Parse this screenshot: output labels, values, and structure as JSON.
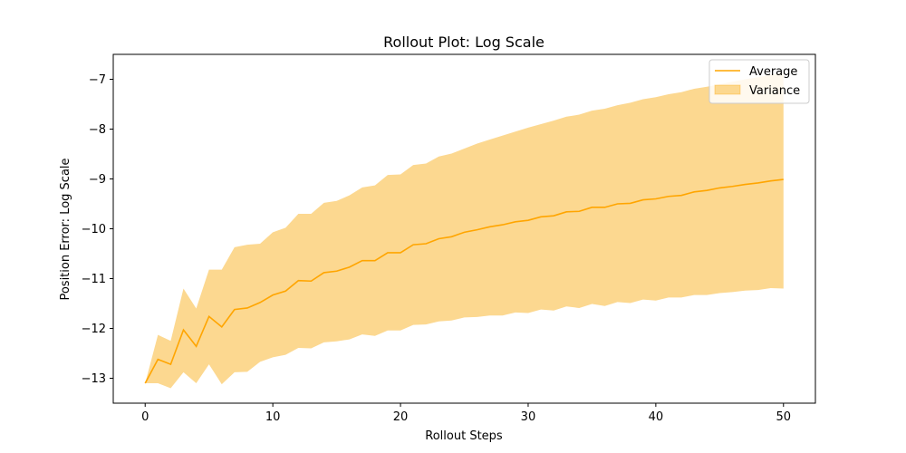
{
  "chart_data": {
    "type": "line",
    "title": "Rollout Plot: Log Scale",
    "xlabel": "Rollout Steps",
    "ylabel": "Position Error: Log Scale",
    "xlim": [
      -2.5,
      52.5
    ],
    "ylim": [
      -13.5,
      -6.5
    ],
    "xticks": [
      0,
      10,
      20,
      30,
      40,
      50
    ],
    "yticks": [
      -13,
      -12,
      -11,
      -10,
      -9,
      -8,
      -7
    ],
    "xtick_labels": [
      "0",
      "10",
      "20",
      "30",
      "40",
      "50"
    ],
    "ytick_labels": [
      "−13",
      "−12",
      "−11",
      "−10",
      "−9",
      "−8",
      "−7"
    ],
    "grid": false,
    "legend_placement": "top-right",
    "colors": {
      "line": "#ffa500",
      "band": "#fcd890",
      "axes": "#000000"
    },
    "x": [
      0,
      1,
      2,
      3,
      4,
      5,
      6,
      7,
      8,
      9,
      10,
      11,
      12,
      13,
      14,
      15,
      16,
      17,
      18,
      19,
      20,
      21,
      22,
      23,
      24,
      25,
      26,
      27,
      28,
      29,
      30,
      31,
      32,
      33,
      34,
      35,
      36,
      37,
      38,
      39,
      40,
      41,
      42,
      43,
      44,
      45,
      46,
      47,
      48,
      49,
      50
    ],
    "series": [
      {
        "name": "Average",
        "kind": "line",
        "values": [
          -13.1,
          -12.62,
          -12.72,
          -12.03,
          -12.36,
          -11.76,
          -11.97,
          -11.62,
          -11.59,
          -11.48,
          -11.33,
          -11.25,
          -11.04,
          -11.05,
          -10.88,
          -10.85,
          -10.77,
          -10.64,
          -10.64,
          -10.48,
          -10.48,
          -10.32,
          -10.3,
          -10.2,
          -10.16,
          -10.07,
          -10.02,
          -9.96,
          -9.92,
          -9.86,
          -9.83,
          -9.76,
          -9.74,
          -9.66,
          -9.65,
          -9.57,
          -9.57,
          -9.5,
          -9.49,
          -9.42,
          -9.4,
          -9.35,
          -9.33,
          -9.26,
          -9.23,
          -9.18,
          -9.15,
          -9.11,
          -9.08,
          -9.04,
          -9.01
        ]
      },
      {
        "name": "Variance",
        "kind": "band",
        "upper": [
          -13.1,
          -12.13,
          -12.25,
          -11.2,
          -11.6,
          -10.82,
          -10.82,
          -10.37,
          -10.32,
          -10.3,
          -10.07,
          -9.98,
          -9.7,
          -9.7,
          -9.48,
          -9.44,
          -9.33,
          -9.17,
          -9.13,
          -8.92,
          -8.91,
          -8.72,
          -8.69,
          -8.55,
          -8.49,
          -8.39,
          -8.29,
          -8.21,
          -8.13,
          -8.05,
          -7.97,
          -7.9,
          -7.83,
          -7.75,
          -7.71,
          -7.63,
          -7.59,
          -7.52,
          -7.47,
          -7.4,
          -7.36,
          -7.3,
          -7.26,
          -7.19,
          -7.15,
          -7.1,
          -7.05,
          -7.0,
          -6.96,
          -6.91,
          -6.86
        ],
        "lower": [
          -13.1,
          -13.1,
          -13.2,
          -12.88,
          -13.1,
          -12.72,
          -13.12,
          -12.88,
          -12.87,
          -12.67,
          -12.58,
          -12.53,
          -12.39,
          -12.4,
          -12.28,
          -12.26,
          -12.22,
          -12.12,
          -12.15,
          -12.04,
          -12.04,
          -11.93,
          -11.92,
          -11.86,
          -11.84,
          -11.78,
          -11.77,
          -11.74,
          -11.74,
          -11.68,
          -11.69,
          -11.62,
          -11.64,
          -11.56,
          -11.59,
          -11.51,
          -11.55,
          -11.47,
          -11.49,
          -11.42,
          -11.44,
          -11.38,
          -11.38,
          -11.33,
          -11.33,
          -11.29,
          -11.27,
          -11.24,
          -11.23,
          -11.19,
          -11.2
        ]
      }
    ]
  }
}
